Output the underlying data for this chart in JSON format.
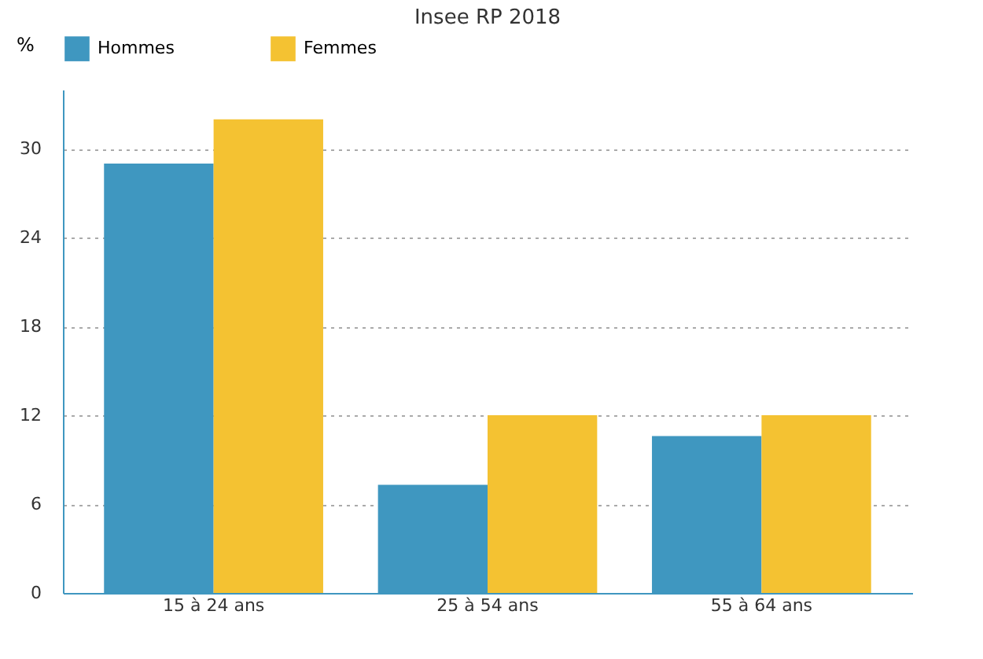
{
  "chart_data": {
    "type": "bar",
    "title": "Insee RP 2018",
    "ylabel": "%",
    "categories": [
      "15 à 24 ans",
      "25 à 54 ans",
      "55 à 64 ans"
    ],
    "series": [
      {
        "name": "Hommes",
        "color": "#3f97c0",
        "values": [
          29.0,
          7.3,
          10.6
        ]
      },
      {
        "name": "Femmes",
        "color": "#f4c232",
        "values": [
          32.0,
          12.0,
          12.0
        ]
      }
    ],
    "ylim": [
      0,
      34
    ],
    "yticks": [
      0,
      6,
      12,
      18,
      24,
      30
    ],
    "grid": "y",
    "legend": "top"
  }
}
